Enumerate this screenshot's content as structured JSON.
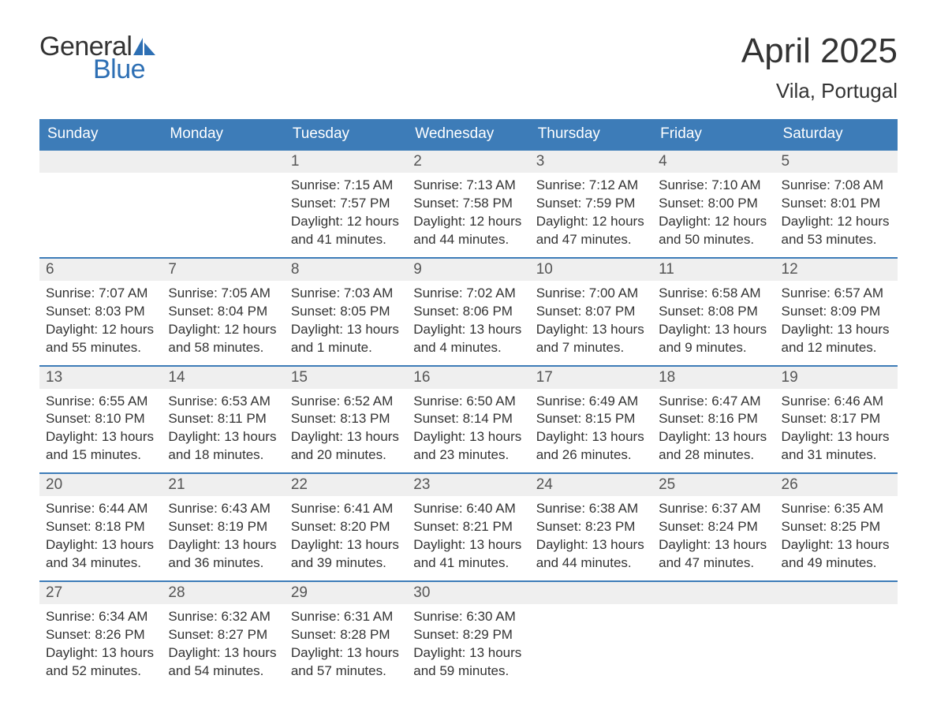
{
  "logo": {
    "line1": "General",
    "line2": "Blue",
    "sail_color": "#2d6fb4"
  },
  "title": "April 2025",
  "location": "Vila, Portugal",
  "colors": {
    "header_bg": "#3d7cb8",
    "header_text": "#ffffff",
    "daynum_bg": "#efefef",
    "week_divider": "#3d7cb8",
    "body_text": "#333333",
    "page_bg": "#ffffff"
  },
  "weekdays": [
    "Sunday",
    "Monday",
    "Tuesday",
    "Wednesday",
    "Thursday",
    "Friday",
    "Saturday"
  ],
  "weeks": [
    [
      null,
      null,
      {
        "day": "1",
        "sunrise": "Sunrise: 7:15 AM",
        "sunset": "Sunset: 7:57 PM",
        "daylight1": "Daylight: 12 hours",
        "daylight2": "and 41 minutes."
      },
      {
        "day": "2",
        "sunrise": "Sunrise: 7:13 AM",
        "sunset": "Sunset: 7:58 PM",
        "daylight1": "Daylight: 12 hours",
        "daylight2": "and 44 minutes."
      },
      {
        "day": "3",
        "sunrise": "Sunrise: 7:12 AM",
        "sunset": "Sunset: 7:59 PM",
        "daylight1": "Daylight: 12 hours",
        "daylight2": "and 47 minutes."
      },
      {
        "day": "4",
        "sunrise": "Sunrise: 7:10 AM",
        "sunset": "Sunset: 8:00 PM",
        "daylight1": "Daylight: 12 hours",
        "daylight2": "and 50 minutes."
      },
      {
        "day": "5",
        "sunrise": "Sunrise: 7:08 AM",
        "sunset": "Sunset: 8:01 PM",
        "daylight1": "Daylight: 12 hours",
        "daylight2": "and 53 minutes."
      }
    ],
    [
      {
        "day": "6",
        "sunrise": "Sunrise: 7:07 AM",
        "sunset": "Sunset: 8:03 PM",
        "daylight1": "Daylight: 12 hours",
        "daylight2": "and 55 minutes."
      },
      {
        "day": "7",
        "sunrise": "Sunrise: 7:05 AM",
        "sunset": "Sunset: 8:04 PM",
        "daylight1": "Daylight: 12 hours",
        "daylight2": "and 58 minutes."
      },
      {
        "day": "8",
        "sunrise": "Sunrise: 7:03 AM",
        "sunset": "Sunset: 8:05 PM",
        "daylight1": "Daylight: 13 hours",
        "daylight2": "and 1 minute."
      },
      {
        "day": "9",
        "sunrise": "Sunrise: 7:02 AM",
        "sunset": "Sunset: 8:06 PM",
        "daylight1": "Daylight: 13 hours",
        "daylight2": "and 4 minutes."
      },
      {
        "day": "10",
        "sunrise": "Sunrise: 7:00 AM",
        "sunset": "Sunset: 8:07 PM",
        "daylight1": "Daylight: 13 hours",
        "daylight2": "and 7 minutes."
      },
      {
        "day": "11",
        "sunrise": "Sunrise: 6:58 AM",
        "sunset": "Sunset: 8:08 PM",
        "daylight1": "Daylight: 13 hours",
        "daylight2": "and 9 minutes."
      },
      {
        "day": "12",
        "sunrise": "Sunrise: 6:57 AM",
        "sunset": "Sunset: 8:09 PM",
        "daylight1": "Daylight: 13 hours",
        "daylight2": "and 12 minutes."
      }
    ],
    [
      {
        "day": "13",
        "sunrise": "Sunrise: 6:55 AM",
        "sunset": "Sunset: 8:10 PM",
        "daylight1": "Daylight: 13 hours",
        "daylight2": "and 15 minutes."
      },
      {
        "day": "14",
        "sunrise": "Sunrise: 6:53 AM",
        "sunset": "Sunset: 8:11 PM",
        "daylight1": "Daylight: 13 hours",
        "daylight2": "and 18 minutes."
      },
      {
        "day": "15",
        "sunrise": "Sunrise: 6:52 AM",
        "sunset": "Sunset: 8:13 PM",
        "daylight1": "Daylight: 13 hours",
        "daylight2": "and 20 minutes."
      },
      {
        "day": "16",
        "sunrise": "Sunrise: 6:50 AM",
        "sunset": "Sunset: 8:14 PM",
        "daylight1": "Daylight: 13 hours",
        "daylight2": "and 23 minutes."
      },
      {
        "day": "17",
        "sunrise": "Sunrise: 6:49 AM",
        "sunset": "Sunset: 8:15 PM",
        "daylight1": "Daylight: 13 hours",
        "daylight2": "and 26 minutes."
      },
      {
        "day": "18",
        "sunrise": "Sunrise: 6:47 AM",
        "sunset": "Sunset: 8:16 PM",
        "daylight1": "Daylight: 13 hours",
        "daylight2": "and 28 minutes."
      },
      {
        "day": "19",
        "sunrise": "Sunrise: 6:46 AM",
        "sunset": "Sunset: 8:17 PM",
        "daylight1": "Daylight: 13 hours",
        "daylight2": "and 31 minutes."
      }
    ],
    [
      {
        "day": "20",
        "sunrise": "Sunrise: 6:44 AM",
        "sunset": "Sunset: 8:18 PM",
        "daylight1": "Daylight: 13 hours",
        "daylight2": "and 34 minutes."
      },
      {
        "day": "21",
        "sunrise": "Sunrise: 6:43 AM",
        "sunset": "Sunset: 8:19 PM",
        "daylight1": "Daylight: 13 hours",
        "daylight2": "and 36 minutes."
      },
      {
        "day": "22",
        "sunrise": "Sunrise: 6:41 AM",
        "sunset": "Sunset: 8:20 PM",
        "daylight1": "Daylight: 13 hours",
        "daylight2": "and 39 minutes."
      },
      {
        "day": "23",
        "sunrise": "Sunrise: 6:40 AM",
        "sunset": "Sunset: 8:21 PM",
        "daylight1": "Daylight: 13 hours",
        "daylight2": "and 41 minutes."
      },
      {
        "day": "24",
        "sunrise": "Sunrise: 6:38 AM",
        "sunset": "Sunset: 8:23 PM",
        "daylight1": "Daylight: 13 hours",
        "daylight2": "and 44 minutes."
      },
      {
        "day": "25",
        "sunrise": "Sunrise: 6:37 AM",
        "sunset": "Sunset: 8:24 PM",
        "daylight1": "Daylight: 13 hours",
        "daylight2": "and 47 minutes."
      },
      {
        "day": "26",
        "sunrise": "Sunrise: 6:35 AM",
        "sunset": "Sunset: 8:25 PM",
        "daylight1": "Daylight: 13 hours",
        "daylight2": "and 49 minutes."
      }
    ],
    [
      {
        "day": "27",
        "sunrise": "Sunrise: 6:34 AM",
        "sunset": "Sunset: 8:26 PM",
        "daylight1": "Daylight: 13 hours",
        "daylight2": "and 52 minutes."
      },
      {
        "day": "28",
        "sunrise": "Sunrise: 6:32 AM",
        "sunset": "Sunset: 8:27 PM",
        "daylight1": "Daylight: 13 hours",
        "daylight2": "and 54 minutes."
      },
      {
        "day": "29",
        "sunrise": "Sunrise: 6:31 AM",
        "sunset": "Sunset: 8:28 PM",
        "daylight1": "Daylight: 13 hours",
        "daylight2": "and 57 minutes."
      },
      {
        "day": "30",
        "sunrise": "Sunrise: 6:30 AM",
        "sunset": "Sunset: 8:29 PM",
        "daylight1": "Daylight: 13 hours",
        "daylight2": "and 59 minutes."
      },
      null,
      null,
      null
    ]
  ]
}
